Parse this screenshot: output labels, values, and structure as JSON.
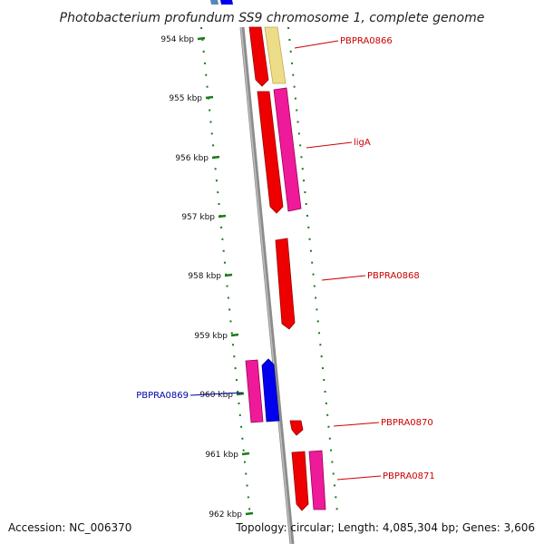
{
  "title": "Photobacterium profundum SS9 chromosome 1, complete genome",
  "accession": "Accession: NC_006370",
  "topology": "Topology: circular; Length: 4,085,304 bp; Genes: 3,606",
  "colors": {
    "backbone": "#909090",
    "tick": "#1a7a1a",
    "label_forward": "#cc0000",
    "label_reverse": "#0000aa",
    "red": "#ee0000",
    "pink": "#ee1a99",
    "blue": "#0000ee",
    "yellow": "#eedd88",
    "steelblue": "#5588bb"
  },
  "ticks": [
    "954 kbp",
    "955 kbp",
    "956 kbp",
    "957 kbp",
    "958 kbp",
    "959 kbp",
    "960 kbp",
    "961 kbp",
    "962 kbp"
  ],
  "gene_labels": [
    {
      "text": "PBPRA0866",
      "strand": "forward"
    },
    {
      "text": "ligA",
      "strand": "forward"
    },
    {
      "text": "PBPRA0868",
      "strand": "forward"
    },
    {
      "text": "PBPRA0869",
      "strand": "reverse"
    },
    {
      "text": "PBPRA0870",
      "strand": "forward"
    },
    {
      "text": "PBPRA0871",
      "strand": "forward"
    }
  ]
}
